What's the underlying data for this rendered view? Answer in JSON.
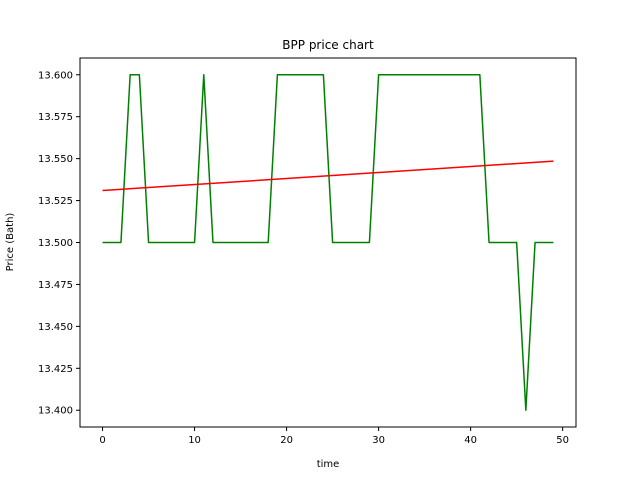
{
  "chart_data": {
    "type": "line",
    "title": "BPP price chart",
    "xlabel": "time",
    "ylabel": "Price (Bath)",
    "xlim": [
      -2.45,
      51.45
    ],
    "ylim": [
      13.39,
      13.61
    ],
    "x_ticks": [
      0,
      10,
      20,
      30,
      40,
      50
    ],
    "y_ticks": [
      13.4,
      13.425,
      13.45,
      13.475,
      13.5,
      13.525,
      13.55,
      13.575,
      13.6
    ],
    "grid": false,
    "legend": "none",
    "series": [
      {
        "color": "#008000",
        "x": [
          0,
          1,
          2,
          3,
          4,
          5,
          6,
          7,
          8,
          9,
          10,
          11,
          12,
          13,
          14,
          15,
          16,
          17,
          18,
          19,
          20,
          21,
          22,
          23,
          24,
          25,
          26,
          27,
          28,
          29,
          30,
          31,
          32,
          33,
          34,
          35,
          36,
          37,
          38,
          39,
          40,
          41,
          42,
          43,
          44,
          45,
          46,
          47,
          48,
          49
        ],
        "values": [
          13.5,
          13.5,
          13.5,
          13.6,
          13.6,
          13.5,
          13.5,
          13.5,
          13.5,
          13.5,
          13.5,
          13.6,
          13.5,
          13.5,
          13.5,
          13.5,
          13.5,
          13.5,
          13.5,
          13.6,
          13.6,
          13.6,
          13.6,
          13.6,
          13.6,
          13.5,
          13.5,
          13.5,
          13.5,
          13.5,
          13.6,
          13.6,
          13.6,
          13.6,
          13.6,
          13.6,
          13.6,
          13.6,
          13.6,
          13.6,
          13.6,
          13.6,
          13.5,
          13.5,
          13.5,
          13.5,
          13.4,
          13.5,
          13.5,
          13.5
        ]
      },
      {
        "color": "#ff0000",
        "x": [
          0,
          49
        ],
        "values": [
          13.531,
          13.5485
        ]
      }
    ]
  }
}
